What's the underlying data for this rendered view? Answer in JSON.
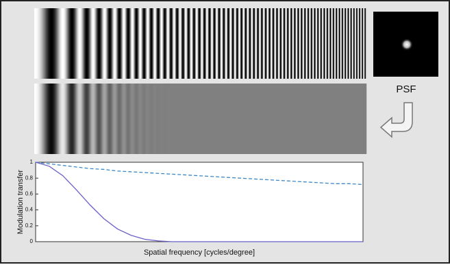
{
  "chart_data": {
    "type": "line",
    "xlabel": "Spatial frequency [cycles/degree]",
    "ylabel": "Modulation transfer",
    "x": [
      0,
      2,
      4,
      6,
      8,
      10,
      12,
      14,
      16,
      18,
      20,
      22,
      24,
      26,
      28,
      30,
      32,
      34,
      36,
      38,
      40,
      42,
      44,
      46,
      48
    ],
    "series": [
      {
        "color": "#3a87c8",
        "dashed": true,
        "values": [
          1,
          0.98,
          0.96,
          0.94,
          0.92,
          0.91,
          0.89,
          0.88,
          0.87,
          0.86,
          0.85,
          0.84,
          0.83,
          0.82,
          0.81,
          0.8,
          0.79,
          0.78,
          0.77,
          0.76,
          0.75,
          0.74,
          0.73,
          0.73,
          0.72
        ]
      },
      {
        "color": "#6a5fc8",
        "dashed": false,
        "values": [
          1,
          0.95,
          0.83,
          0.65,
          0.46,
          0.29,
          0.16,
          0.08,
          0.03,
          0.01,
          0,
          0,
          0,
          0,
          0,
          0,
          0,
          0,
          0,
          0,
          0,
          0,
          0,
          0,
          0
        ]
      }
    ],
    "xlim": [
      0,
      48
    ],
    "ylim": [
      0,
      1
    ],
    "yticks": [
      0,
      0.2,
      0.4,
      0.6,
      0.8,
      1
    ]
  },
  "figure": {
    "psf_label": "PSF"
  }
}
